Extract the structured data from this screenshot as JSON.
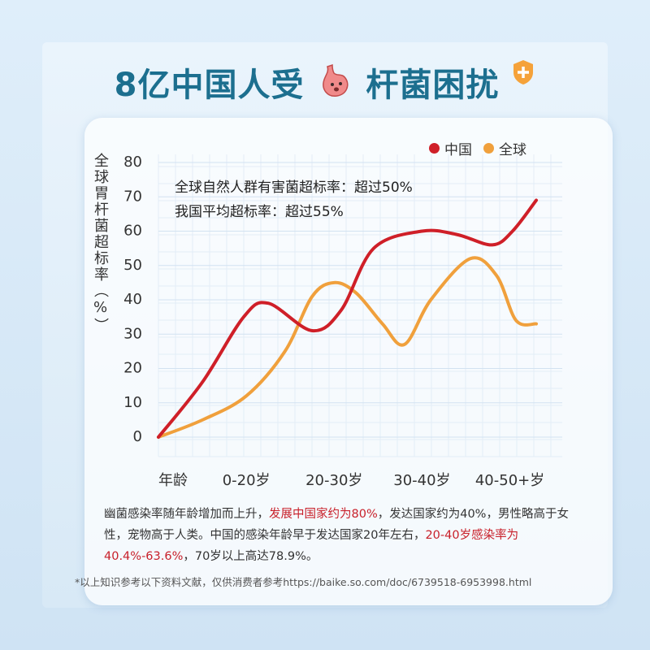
{
  "header": {
    "title_before": "8亿中国人受",
    "title_after": "杆菌困扰"
  },
  "chart_data": {
    "type": "line",
    "y_label": "全球胃杆菌超标率（%）",
    "annotations": [
      "全球自然人群有害菌超标率：超过50%",
      "我国平均超标率：超过55%"
    ],
    "xlim": [
      0,
      4.3
    ],
    "xticks": [
      {
        "value": 0,
        "label": "年龄"
      },
      {
        "value": 1,
        "label": "0-20岁"
      },
      {
        "value": 2,
        "label": "20-30岁"
      },
      {
        "value": 3,
        "label": "30-40岁"
      },
      {
        "value": 4,
        "label": "40-50+岁"
      }
    ],
    "ylim": [
      0,
      80
    ],
    "yticks": [
      0,
      10,
      20,
      30,
      40,
      50,
      60,
      70,
      80
    ],
    "grid": true,
    "legend": "top-right",
    "series": [
      {
        "name": "中国",
        "color": "#cf1f28",
        "x": [
          0,
          0.5,
          0.97,
          1.25,
          1.75,
          2.08,
          2.45,
          3.0,
          3.4,
          3.8,
          4.03,
          4.3
        ],
        "values": [
          0,
          16,
          35,
          39,
          31,
          37,
          55,
          60,
          59,
          56,
          60,
          69
        ]
      },
      {
        "name": "全球",
        "color": "#f0a03c",
        "x": [
          0,
          0.5,
          1.0,
          1.44,
          1.75,
          2.0,
          2.25,
          2.55,
          2.8,
          3.1,
          3.55,
          3.85,
          4.07,
          4.3
        ],
        "values": [
          0,
          5,
          12,
          25,
          41,
          45,
          42,
          33,
          27,
          40,
          52,
          47,
          34,
          33
        ]
      }
    ]
  },
  "description": [
    {
      "text": "幽菌感染率随年龄增加而上升，",
      "highlight": false
    },
    {
      "text": "发展中国家约为80%",
      "highlight": true
    },
    {
      "text": "，发达国家约为40%，男性略高于女性，宠物高于人类。中国的感染年龄早于发达国家20年左右，",
      "highlight": false
    },
    {
      "text": "20-40岁感染率为40.4%-63.6%",
      "highlight": true
    },
    {
      "text": "，70岁以上高达78.9%。",
      "highlight": false
    }
  ],
  "footnote": "*以上知识参考以下资料文献，仅供消费者参考https://baike.so.com/doc/6739518-6953998.html"
}
